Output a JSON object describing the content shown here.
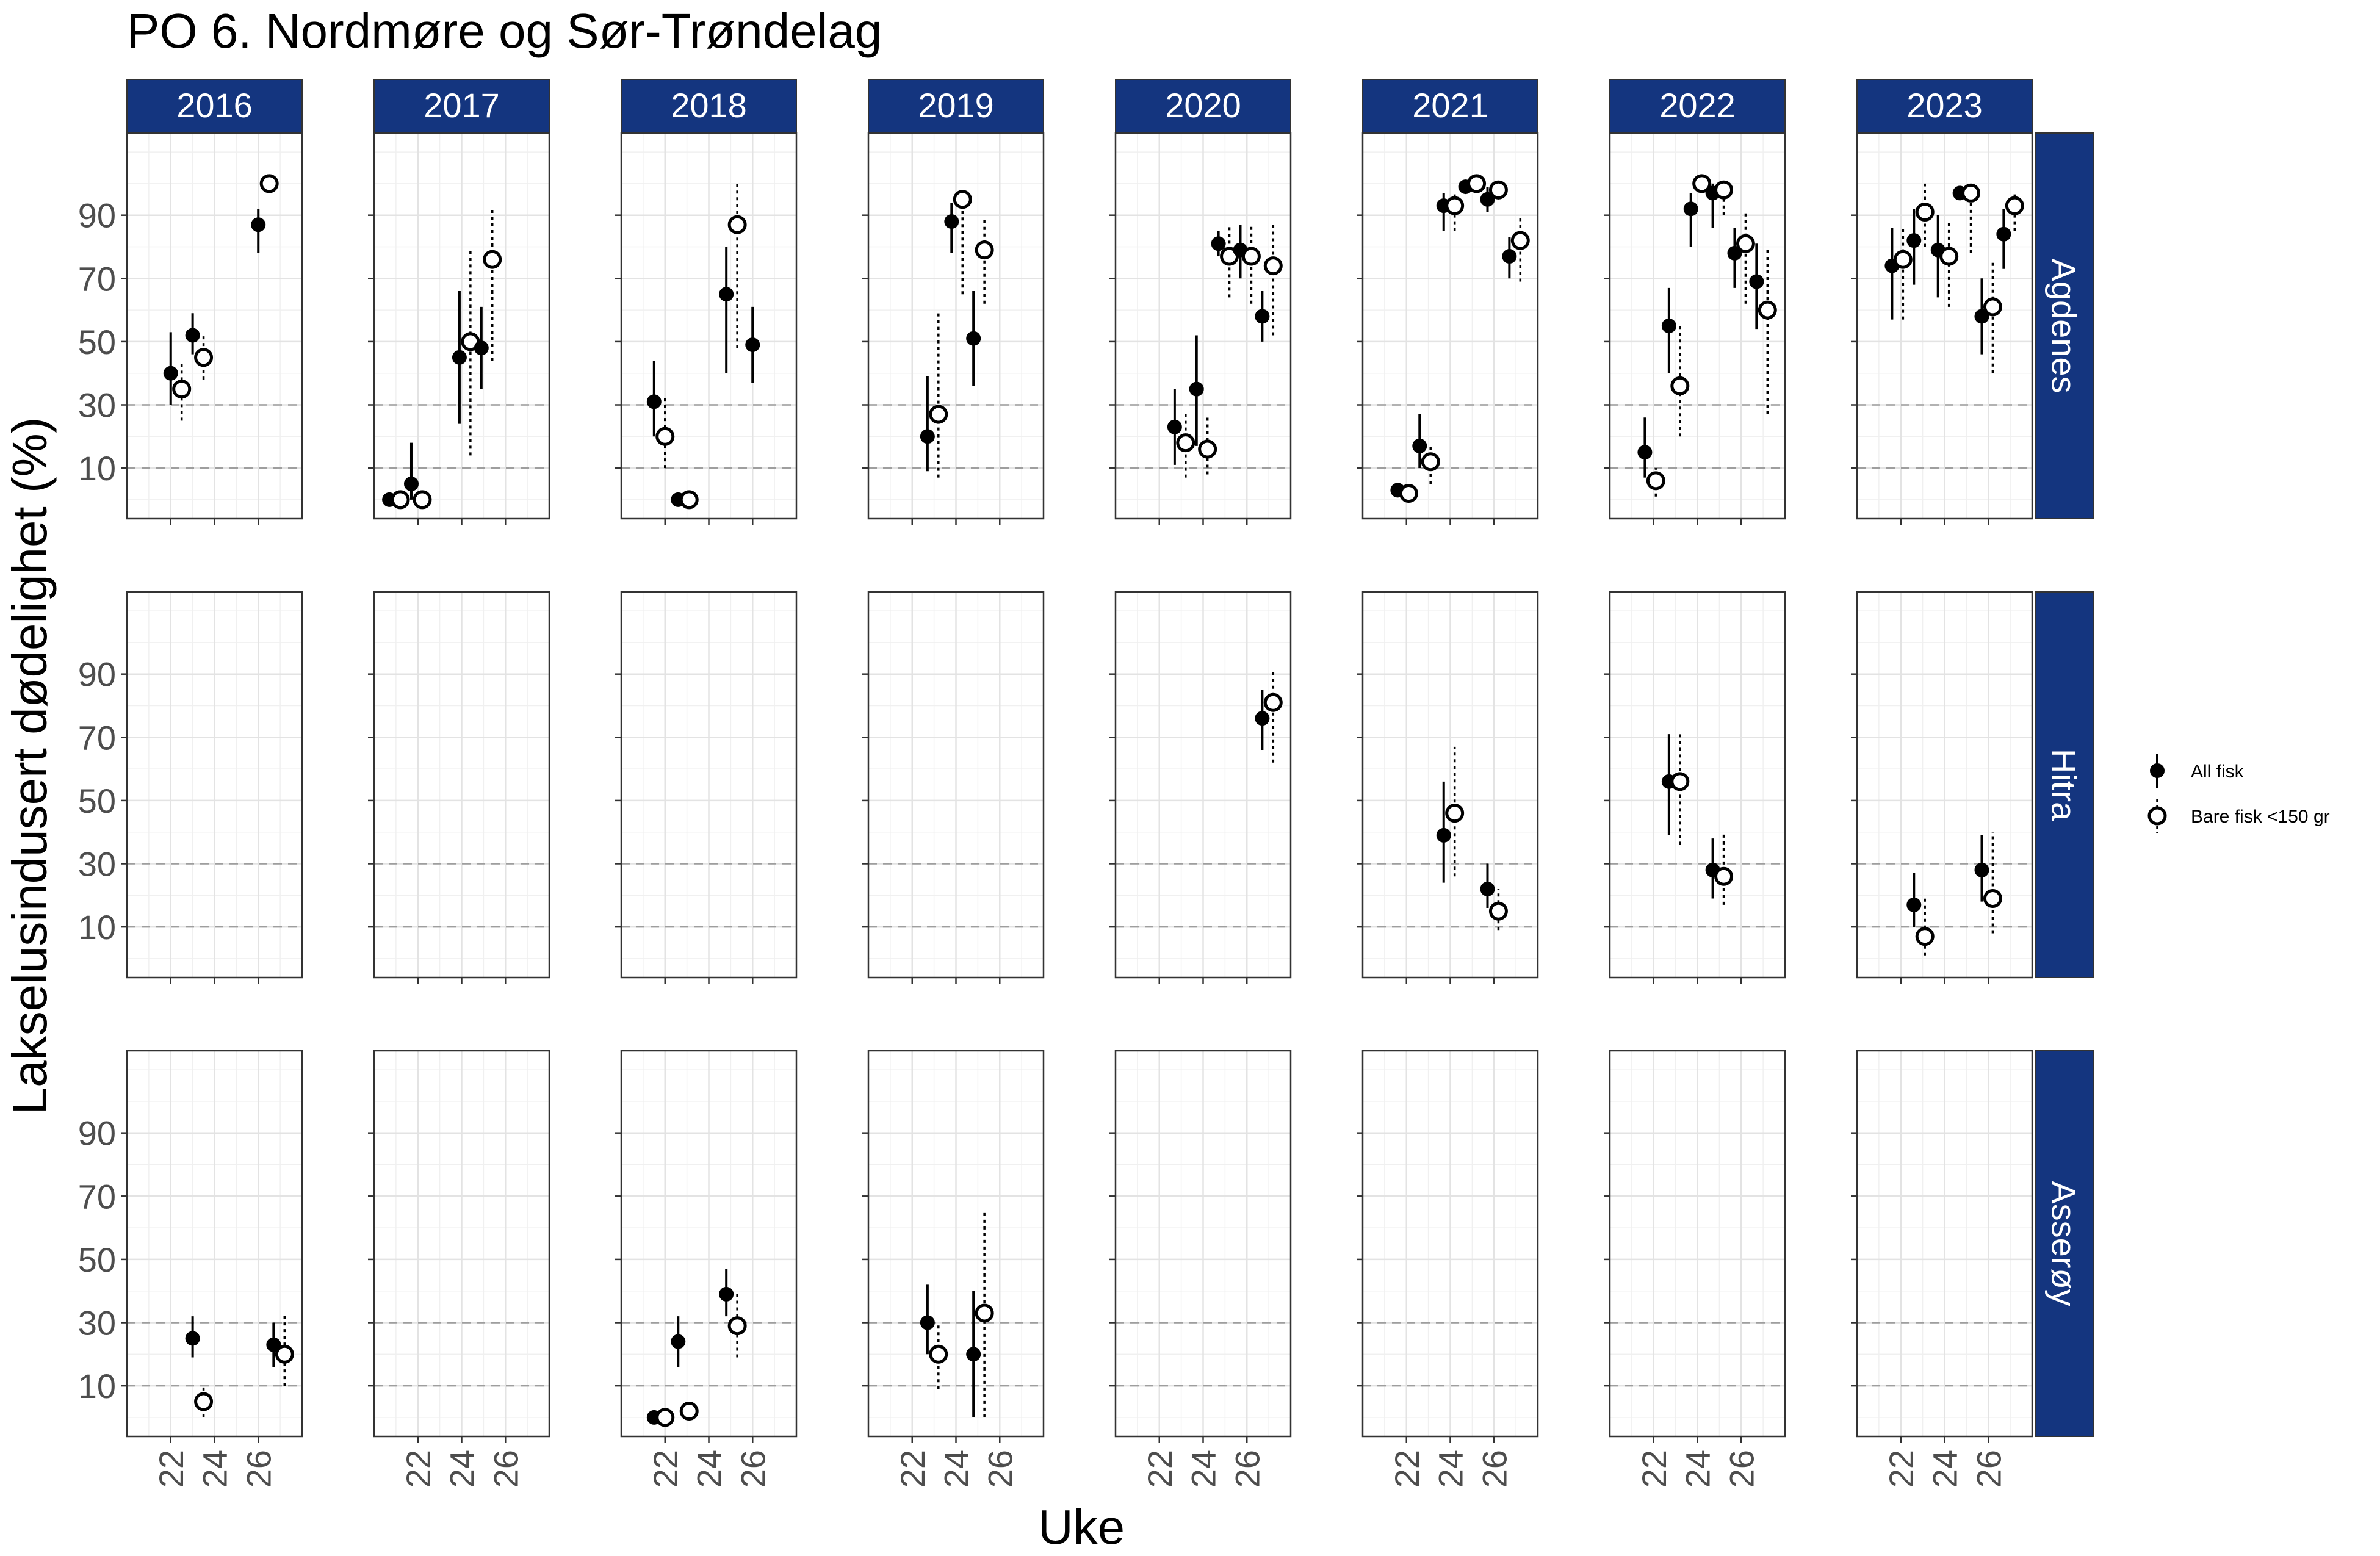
{
  "chart_data": {
    "type": "faceted point-range (point estimate with interval)",
    "title": "PO 6. Nordmøre og Sør-Trøndelag",
    "xlabel": "Uke",
    "ylabel": "Lakselusindusert dødelighet (%)",
    "x_range": [
      20,
      28
    ],
    "x_ticks": [
      22,
      24,
      26
    ],
    "y_range": [
      -6,
      116
    ],
    "y_ticks": [
      10,
      30,
      50,
      70,
      90
    ],
    "reference_lines": [
      10,
      30
    ],
    "grid": true,
    "legend_position": "right",
    "years": [
      "2016",
      "2017",
      "2018",
      "2019",
      "2020",
      "2021",
      "2022",
      "2023"
    ],
    "sites": [
      "Agdenes",
      "Hitra",
      "Asserøy"
    ],
    "series": [
      {
        "key": "all",
        "name": "All fisk",
        "marker": "filled circle",
        "line": "solid"
      },
      {
        "key": "small",
        "name": "Bare fisk <150 gr",
        "marker": "open circle",
        "line": "dotted"
      }
    ],
    "points": {
      "Agdenes": {
        "2016": [
          {
            "s": "all",
            "x": 22.0,
            "y": 40,
            "lo": 30,
            "hi": 53
          },
          {
            "s": "small",
            "x": 22.5,
            "y": 35,
            "lo": 25,
            "hi": 43
          },
          {
            "s": "all",
            "x": 23.0,
            "y": 52,
            "lo": 46,
            "hi": 59
          },
          {
            "s": "small",
            "x": 23.5,
            "y": 45,
            "lo": 38,
            "hi": 52
          },
          {
            "s": "all",
            "x": 26.0,
            "y": 87,
            "lo": 78,
            "hi": 92
          },
          {
            "s": "small",
            "x": 26.5,
            "y": 100,
            "lo": 100,
            "hi": 100
          }
        ],
        "2017": [
          {
            "s": "all",
            "x": 20.7,
            "y": 0,
            "lo": 0,
            "hi": 0
          },
          {
            "s": "small",
            "x": 21.2,
            "y": 0,
            "lo": 0,
            "hi": 0
          },
          {
            "s": "all",
            "x": 21.7,
            "y": 5,
            "lo": 0,
            "hi": 18
          },
          {
            "s": "small",
            "x": 22.2,
            "y": 0,
            "lo": 0,
            "hi": 0
          },
          {
            "s": "all",
            "x": 23.9,
            "y": 45,
            "lo": 24,
            "hi": 66
          },
          {
            "s": "small",
            "x": 24.4,
            "y": 50,
            "lo": 14,
            "hi": 79
          },
          {
            "s": "all",
            "x": 24.9,
            "y": 48,
            "lo": 35,
            "hi": 61
          },
          {
            "s": "small",
            "x": 25.4,
            "y": 76,
            "lo": 44,
            "hi": 92
          }
        ],
        "2018": [
          {
            "s": "all",
            "x": 21.5,
            "y": 31,
            "lo": 20,
            "hi": 44
          },
          {
            "s": "small",
            "x": 22.0,
            "y": 20,
            "lo": 10,
            "hi": 33
          },
          {
            "s": "all",
            "x": 22.6,
            "y": 0,
            "lo": 0,
            "hi": 0
          },
          {
            "s": "small",
            "x": 23.1,
            "y": 0,
            "lo": 0,
            "hi": 0
          },
          {
            "s": "all",
            "x": 24.8,
            "y": 65,
            "lo": 40,
            "hi": 80
          },
          {
            "s": "small",
            "x": 25.3,
            "y": 87,
            "lo": 48,
            "hi": 100
          },
          {
            "s": "all",
            "x": 26.0,
            "y": 49,
            "lo": 37,
            "hi": 61
          }
        ],
        "2019": [
          {
            "s": "all",
            "x": 22.7,
            "y": 20,
            "lo": 9,
            "hi": 39
          },
          {
            "s": "small",
            "x": 23.2,
            "y": 27,
            "lo": 7,
            "hi": 60
          },
          {
            "s": "all",
            "x": 23.8,
            "y": 88,
            "lo": 78,
            "hi": 94
          },
          {
            "s": "small",
            "x": 24.3,
            "y": 95,
            "lo": 65,
            "hi": 99
          },
          {
            "s": "all",
            "x": 24.8,
            "y": 51,
            "lo": 36,
            "hi": 66
          },
          {
            "s": "small",
            "x": 25.3,
            "y": 79,
            "lo": 62,
            "hi": 89
          }
        ],
        "2020": [
          {
            "s": "all",
            "x": 22.7,
            "y": 23,
            "lo": 11,
            "hi": 35
          },
          {
            "s": "small",
            "x": 23.2,
            "y": 18,
            "lo": 7,
            "hi": 28
          },
          {
            "s": "all",
            "x": 23.7,
            "y": 35,
            "lo": 17,
            "hi": 52
          },
          {
            "s": "small",
            "x": 24.2,
            "y": 16,
            "lo": 8,
            "hi": 26
          },
          {
            "s": "all",
            "x": 24.7,
            "y": 81,
            "lo": 77,
            "hi": 85
          },
          {
            "s": "small",
            "x": 25.2,
            "y": 77,
            "lo": 64,
            "hi": 87
          },
          {
            "s": "all",
            "x": 25.7,
            "y": 79,
            "lo": 70,
            "hi": 87
          },
          {
            "s": "small",
            "x": 26.2,
            "y": 77,
            "lo": 62,
            "hi": 87
          },
          {
            "s": "all",
            "x": 26.7,
            "y": 58,
            "lo": 50,
            "hi": 66
          },
          {
            "s": "small",
            "x": 27.2,
            "y": 74,
            "lo": 52,
            "hi": 87
          }
        ],
        "2021": [
          {
            "s": "all",
            "x": 21.6,
            "y": 3,
            "lo": 3,
            "hi": 3
          },
          {
            "s": "small",
            "x": 22.1,
            "y": 2,
            "lo": 0,
            "hi": 3
          },
          {
            "s": "all",
            "x": 22.6,
            "y": 17,
            "lo": 10,
            "hi": 27
          },
          {
            "s": "small",
            "x": 23.1,
            "y": 12,
            "lo": 5,
            "hi": 17
          },
          {
            "s": "all",
            "x": 23.7,
            "y": 93,
            "lo": 85,
            "hi": 97
          },
          {
            "s": "small",
            "x": 24.2,
            "y": 93,
            "lo": 85,
            "hi": 97
          },
          {
            "s": "all",
            "x": 24.7,
            "y": 99,
            "lo": 98,
            "hi": 100
          },
          {
            "s": "small",
            "x": 25.2,
            "y": 100,
            "lo": 100,
            "hi": 100
          },
          {
            "s": "all",
            "x": 25.7,
            "y": 95,
            "lo": 91,
            "hi": 99
          },
          {
            "s": "small",
            "x": 26.2,
            "y": 98,
            "lo": 95,
            "hi": 100
          },
          {
            "s": "all",
            "x": 26.7,
            "y": 77,
            "lo": 70,
            "hi": 83
          },
          {
            "s": "small",
            "x": 27.2,
            "y": 82,
            "lo": 69,
            "hi": 90
          }
        ],
        "2022": [
          {
            "s": "all",
            "x": 21.6,
            "y": 15,
            "lo": 7,
            "hi": 26
          },
          {
            "s": "small",
            "x": 22.1,
            "y": 6,
            "lo": 1,
            "hi": 10
          },
          {
            "s": "all",
            "x": 22.7,
            "y": 55,
            "lo": 40,
            "hi": 67
          },
          {
            "s": "small",
            "x": 23.2,
            "y": 36,
            "lo": 20,
            "hi": 55
          },
          {
            "s": "all",
            "x": 23.7,
            "y": 92,
            "lo": 80,
            "hi": 97
          },
          {
            "s": "small",
            "x": 24.2,
            "y": 100,
            "lo": 100,
            "hi": 100
          },
          {
            "s": "all",
            "x": 24.7,
            "y": 97,
            "lo": 86,
            "hi": 100
          },
          {
            "s": "small",
            "x": 25.2,
            "y": 98,
            "lo": 90,
            "hi": 100
          },
          {
            "s": "all",
            "x": 25.7,
            "y": 78,
            "lo": 67,
            "hi": 86
          },
          {
            "s": "small",
            "x": 26.2,
            "y": 81,
            "lo": 62,
            "hi": 91
          },
          {
            "s": "all",
            "x": 26.7,
            "y": 69,
            "lo": 54,
            "hi": 81
          },
          {
            "s": "small",
            "x": 27.2,
            "y": 60,
            "lo": 27,
            "hi": 80
          }
        ],
        "2023": [
          {
            "s": "all",
            "x": 21.6,
            "y": 74,
            "lo": 57,
            "hi": 86
          },
          {
            "s": "small",
            "x": 22.1,
            "y": 76,
            "lo": 57,
            "hi": 86
          },
          {
            "s": "all",
            "x": 22.6,
            "y": 82,
            "lo": 68,
            "hi": 92
          },
          {
            "s": "small",
            "x": 23.1,
            "y": 91,
            "lo": 80,
            "hi": 100
          },
          {
            "s": "all",
            "x": 23.7,
            "y": 79,
            "lo": 64,
            "hi": 90
          },
          {
            "s": "small",
            "x": 24.2,
            "y": 77,
            "lo": 61,
            "hi": 88
          },
          {
            "s": "all",
            "x": 24.7,
            "y": 97,
            "lo": 95,
            "hi": 99
          },
          {
            "s": "small",
            "x": 25.2,
            "y": 97,
            "lo": 78,
            "hi": 100
          },
          {
            "s": "all",
            "x": 25.7,
            "y": 58,
            "lo": 46,
            "hi": 70
          },
          {
            "s": "small",
            "x": 26.2,
            "y": 61,
            "lo": 40,
            "hi": 76
          },
          {
            "s": "all",
            "x": 26.7,
            "y": 84,
            "lo": 73,
            "hi": 92
          },
          {
            "s": "small",
            "x": 27.2,
            "y": 93,
            "lo": 85,
            "hi": 97
          }
        ]
      },
      "Hitra": {
        "2016": [],
        "2017": [],
        "2018": [],
        "2019": [],
        "2020": [
          {
            "s": "all",
            "x": 26.7,
            "y": 76,
            "lo": 66,
            "hi": 85
          },
          {
            "s": "small",
            "x": 27.2,
            "y": 81,
            "lo": 62,
            "hi": 91
          }
        ],
        "2021": [
          {
            "s": "all",
            "x": 23.7,
            "y": 39,
            "lo": 24,
            "hi": 56
          },
          {
            "s": "small",
            "x": 24.2,
            "y": 46,
            "lo": 26,
            "hi": 67
          },
          {
            "s": "all",
            "x": 25.7,
            "y": 22,
            "lo": 16,
            "hi": 30
          },
          {
            "s": "small",
            "x": 26.2,
            "y": 15,
            "lo": 9,
            "hi": 22
          }
        ],
        "2022": [
          {
            "s": "all",
            "x": 22.7,
            "y": 56,
            "lo": 39,
            "hi": 71
          },
          {
            "s": "small",
            "x": 23.2,
            "y": 56,
            "lo": 36,
            "hi": 72
          },
          {
            "s": "all",
            "x": 24.7,
            "y": 28,
            "lo": 19,
            "hi": 38
          },
          {
            "s": "small",
            "x": 25.2,
            "y": 26,
            "lo": 17,
            "hi": 40
          }
        ],
        "2023": [
          {
            "s": "all",
            "x": 22.6,
            "y": 17,
            "lo": 10,
            "hi": 27
          },
          {
            "s": "small",
            "x": 23.1,
            "y": 7,
            "lo": 1,
            "hi": 20
          },
          {
            "s": "all",
            "x": 25.7,
            "y": 28,
            "lo": 18,
            "hi": 39
          },
          {
            "s": "small",
            "x": 26.2,
            "y": 19,
            "lo": 8,
            "hi": 40
          }
        ]
      },
      "Asserøy": {
        "2016": [
          {
            "s": "all",
            "x": 23.0,
            "y": 25,
            "lo": 19,
            "hi": 32
          },
          {
            "s": "small",
            "x": 23.5,
            "y": 5,
            "lo": 0,
            "hi": 10
          },
          {
            "s": "all",
            "x": 26.7,
            "y": 23,
            "lo": 16,
            "hi": 30
          },
          {
            "s": "small",
            "x": 27.2,
            "y": 20,
            "lo": 10,
            "hi": 33
          }
        ],
        "2017": [],
        "2018": [
          {
            "s": "all",
            "x": 21.5,
            "y": 0,
            "lo": 0,
            "hi": 0
          },
          {
            "s": "small",
            "x": 22.0,
            "y": 0,
            "lo": 0,
            "hi": 0
          },
          {
            "s": "all",
            "x": 22.6,
            "y": 24,
            "lo": 16,
            "hi": 32
          },
          {
            "s": "small",
            "x": 23.1,
            "y": 2,
            "lo": 1,
            "hi": 3
          },
          {
            "s": "all",
            "x": 24.8,
            "y": 39,
            "lo": 32,
            "hi": 47
          },
          {
            "s": "small",
            "x": 25.3,
            "y": 29,
            "lo": 19,
            "hi": 40
          }
        ],
        "2019": [
          {
            "s": "all",
            "x": 22.7,
            "y": 30,
            "lo": 20,
            "hi": 42
          },
          {
            "s": "small",
            "x": 23.2,
            "y": 20,
            "lo": 9,
            "hi": 30
          },
          {
            "s": "all",
            "x": 24.8,
            "y": 20,
            "lo": 0,
            "hi": 40
          },
          {
            "s": "small",
            "x": 25.3,
            "y": 33,
            "lo": 0,
            "hi": 66
          }
        ],
        "2020": [],
        "2021": [],
        "2022": [],
        "2023": []
      }
    }
  }
}
